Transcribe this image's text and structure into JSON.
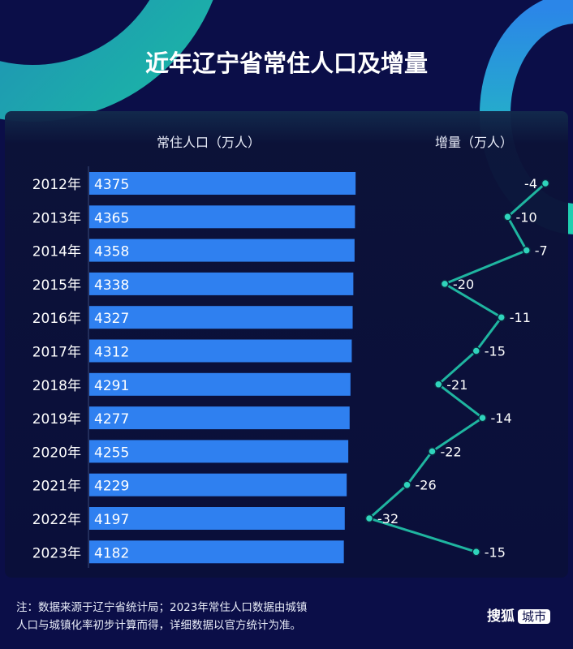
{
  "title": "近年辽宁省常住人口及增量",
  "colors": {
    "bar": "#2f80f0",
    "line": "#1fb5a0",
    "point": "#2fd4bc",
    "background": "#0b0e48"
  },
  "chart_data": {
    "type": "bar",
    "categories": [
      "2012年",
      "2013年",
      "2014年",
      "2015年",
      "2016年",
      "2017年",
      "2018年",
      "2019年",
      "2020年",
      "2021年",
      "2022年",
      "2023年"
    ],
    "series": [
      {
        "name": "常住人口（万人）",
        "type": "bar",
        "values": [
          4375,
          4365,
          4358,
          4338,
          4327,
          4312,
          4291,
          4277,
          4255,
          4229,
          4197,
          4182
        ]
      },
      {
        "name": "增量（万人）",
        "type": "line",
        "values": [
          -4,
          -10,
          -7,
          -20,
          -11,
          -15,
          -21,
          -14,
          -22,
          -26,
          -32,
          -15
        ]
      }
    ],
    "grid": false
  },
  "note": [
    "注：数据来源于辽宁省统计局；2023年常住人口数据由城镇",
    "人口与城镇化率初步计算而得，详细数据以官方统计为准。"
  ],
  "logo": {
    "text": "搜狐",
    "badge": "城市"
  }
}
